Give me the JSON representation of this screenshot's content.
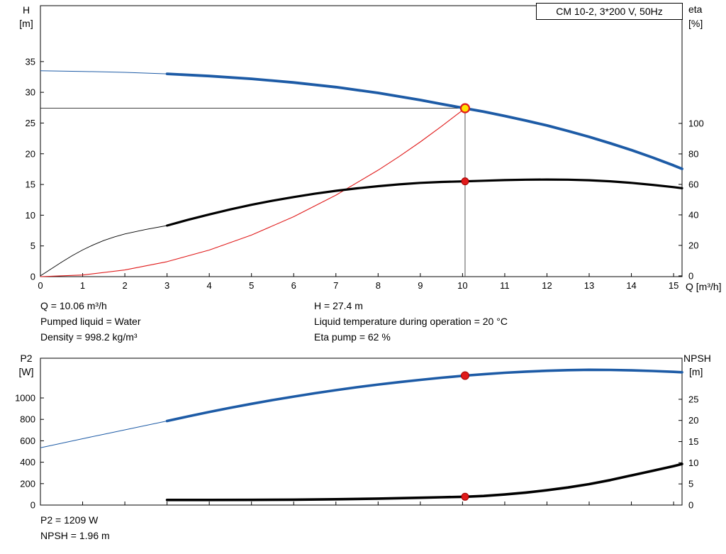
{
  "colors": {
    "blue": "#1d5ba6",
    "black": "#000000",
    "red": "#e01b1b",
    "dark_red": "#a00000",
    "yellow": "#ffe200",
    "gray": "#555555"
  },
  "annotations": {
    "top": {
      "col1": [
        "Q = 10.06 m³/h",
        "Pumped liquid = Water",
        "Density = 998.2 kg/m³"
      ],
      "col2": [
        "H = 27.4 m",
        "Liquid temperature during operation = 20 °C",
        "Eta pump = 62 %"
      ]
    },
    "bottom": [
      "P2 = 1209 W",
      "NPSH = 1.96 m"
    ]
  },
  "chart_data": [
    {
      "type": "line",
      "title": "CM 10-2, 3*200 V, 50Hz",
      "xlabel": "Q [m³/h]",
      "y_left_label_lines": [
        "H",
        "[m]"
      ],
      "y_right_label_lines": [
        "eta",
        "[%]"
      ],
      "x_range": [
        0,
        15.2
      ],
      "y_left_range": [
        0,
        44.1
      ],
      "y_right_range": [
        -0.5,
        177.2
      ],
      "x_ticks": [
        0,
        1,
        2,
        3,
        4,
        5,
        6,
        7,
        8,
        9,
        10,
        11,
        12,
        13,
        14,
        15
      ],
      "y_left_ticks": [
        0,
        5,
        10,
        15,
        20,
        25,
        30,
        35
      ],
      "y_right_ticks": [
        0,
        20,
        40,
        60,
        80,
        100
      ],
      "show_x_labels": true,
      "grid": false,
      "crosshair": {
        "h": {
          "value": 27.4,
          "from_x": 0,
          "to_x": 10.06
        },
        "v": {
          "x": 10.06,
          "from_value": 27.4
        }
      },
      "series": [
        {
          "name": "system-curve",
          "color": "red",
          "axis": "left",
          "width": 1.1,
          "thin_until": null,
          "points": [
            [
              0,
              0
            ],
            [
              1,
              0.27
            ],
            [
              2,
              1.08
            ],
            [
              3,
              2.44
            ],
            [
              4,
              4.33
            ],
            [
              5,
              6.77
            ],
            [
              6,
              9.75
            ],
            [
              7,
              13.27
            ],
            [
              8,
              17.33
            ],
            [
              8.5,
              19.56
            ],
            [
              9,
              21.94
            ],
            [
              9.5,
              24.45
            ],
            [
              10.06,
              27.4
            ]
          ]
        },
        {
          "name": "efficiency-curve",
          "color": "black",
          "axis": "right",
          "width": 3.2,
          "thin_until": 3,
          "thin_width": 0.9,
          "points": [
            [
              0,
              0
            ],
            [
              0.25,
              4.5
            ],
            [
              0.5,
              9
            ],
            [
              0.75,
              13.2
            ],
            [
              1,
              17
            ],
            [
              1.25,
              20.3
            ],
            [
              1.5,
              23.2
            ],
            [
              1.75,
              25.5
            ],
            [
              2,
              27.5
            ],
            [
              2.5,
              30.5
            ],
            [
              3,
              33
            ],
            [
              3.5,
              36.8
            ],
            [
              4,
              40.3
            ],
            [
              4.5,
              43.6
            ],
            [
              5,
              46.6
            ],
            [
              5.5,
              49.3
            ],
            [
              6,
              51.7
            ],
            [
              6.5,
              53.9
            ],
            [
              7,
              55.8
            ],
            [
              7.5,
              57.4
            ],
            [
              8,
              58.8
            ],
            [
              8.5,
              60
            ],
            [
              9,
              61
            ],
            [
              9.5,
              61.6
            ],
            [
              10.06,
              62
            ],
            [
              10.5,
              62.4
            ],
            [
              11,
              62.8
            ],
            [
              11.5,
              63.1
            ],
            [
              12,
              63.2
            ],
            [
              12.5,
              63.1
            ],
            [
              13,
              62.7
            ],
            [
              13.5,
              62
            ],
            [
              14,
              61
            ],
            [
              14.5,
              59.7
            ],
            [
              15,
              58.2
            ],
            [
              15.2,
              57.5
            ]
          ]
        },
        {
          "name": "head-curve",
          "color": "blue",
          "axis": "left",
          "width": 3.8,
          "thin_until": 3,
          "thin_width": 1,
          "points": [
            [
              0,
              33.5
            ],
            [
              1,
              33.4
            ],
            [
              2,
              33.25
            ],
            [
              3,
              33.0
            ],
            [
              4,
              32.65
            ],
            [
              5,
              32.2
            ],
            [
              6,
              31.6
            ],
            [
              7,
              30.85
            ],
            [
              8,
              29.9
            ],
            [
              9,
              28.75
            ],
            [
              9.5,
              28.1
            ],
            [
              10.06,
              27.4
            ],
            [
              10.5,
              26.85
            ],
            [
              11,
              26.15
            ],
            [
              11.5,
              25.4
            ],
            [
              12,
              24.6
            ],
            [
              12.5,
              23.7
            ],
            [
              13,
              22.75
            ],
            [
              13.5,
              21.7
            ],
            [
              14,
              20.6
            ],
            [
              14.5,
              19.4
            ],
            [
              15,
              18.1
            ],
            [
              15.2,
              17.55
            ]
          ]
        }
      ],
      "duty_points": [
        {
          "name": "duty-point-head",
          "x": 10.06,
          "value": 27.4,
          "axis": "left",
          "r": 6,
          "fill": "yellow",
          "stroke": "red",
          "stroke_width": 2.2
        },
        {
          "name": "duty-point-eta",
          "x": 10.06,
          "value": 62,
          "axis": "right",
          "r": 5,
          "fill": "red",
          "stroke": "dark_red",
          "stroke_width": 1
        }
      ]
    },
    {
      "type": "line",
      "title": "",
      "xlabel": "",
      "y_left_label_lines": [
        "P2",
        "[W]"
      ],
      "y_right_label_lines": [
        "NPSH",
        "[m]"
      ],
      "x_range": [
        0,
        15.2
      ],
      "y_left_range": [
        0,
        1371
      ],
      "y_right_range": [
        0,
        34.7
      ],
      "x_ticks": [
        0,
        1,
        2,
        3,
        4,
        5,
        6,
        7,
        8,
        9,
        10,
        11,
        12,
        13,
        14,
        15
      ],
      "y_left_ticks": [
        0,
        200,
        400,
        600,
        800,
        1000
      ],
      "y_right_ticks": [
        0,
        5,
        10,
        15,
        20,
        25
      ],
      "show_x_labels": false,
      "grid": false,
      "crosshair": null,
      "series": [
        {
          "name": "p2-curve",
          "color": "blue",
          "axis": "left",
          "width": 3.6,
          "thin_until": 3,
          "thin_width": 1,
          "points": [
            [
              0,
              535
            ],
            [
              0.5,
              577
            ],
            [
              1,
              619
            ],
            [
              1.5,
              661
            ],
            [
              2,
              702
            ],
            [
              2.5,
              744
            ],
            [
              3,
              785
            ],
            [
              3.5,
              828
            ],
            [
              4,
              869
            ],
            [
              4.5,
              908
            ],
            [
              5,
              945
            ],
            [
              5.5,
              980
            ],
            [
              6,
              1013
            ],
            [
              6.5,
              1044
            ],
            [
              7,
              1073
            ],
            [
              7.5,
              1100
            ],
            [
              8,
              1125
            ],
            [
              8.5,
              1148
            ],
            [
              9,
              1169
            ],
            [
              9.5,
              1189
            ],
            [
              10.06,
              1209
            ],
            [
              10.5,
              1221
            ],
            [
              11,
              1235
            ],
            [
              11.5,
              1246
            ],
            [
              12,
              1254
            ],
            [
              12.5,
              1260
            ],
            [
              13,
              1263
            ],
            [
              13.5,
              1262
            ],
            [
              14,
              1258
            ],
            [
              14.5,
              1252
            ],
            [
              15,
              1244
            ],
            [
              15.2,
              1240
            ]
          ]
        },
        {
          "name": "npsh-curve",
          "color": "black",
          "axis": "right",
          "width": 3.6,
          "thin_until": null,
          "points": [
            [
              3,
              1.2
            ],
            [
              4,
              1.2
            ],
            [
              5,
              1.22
            ],
            [
              6,
              1.28
            ],
            [
              7,
              1.38
            ],
            [
              8,
              1.52
            ],
            [
              8.5,
              1.62
            ],
            [
              9,
              1.73
            ],
            [
              9.5,
              1.84
            ],
            [
              10.06,
              1.96
            ],
            [
              10.5,
              2.15
            ],
            [
              11,
              2.5
            ],
            [
              11.5,
              2.95
            ],
            [
              12,
              3.5
            ],
            [
              12.5,
              4.15
            ],
            [
              13,
              4.95
            ],
            [
              13.5,
              5.9
            ],
            [
              14,
              7.0
            ],
            [
              14.5,
              8.1
            ],
            [
              15,
              9.2
            ],
            [
              15.2,
              9.7
            ]
          ]
        }
      ],
      "duty_points": [
        {
          "name": "duty-point-p2",
          "x": 10.06,
          "value": 1209,
          "axis": "left",
          "r": 5.5,
          "fill": "red",
          "stroke": "dark_red",
          "stroke_width": 1
        },
        {
          "name": "duty-point-npsh",
          "x": 10.06,
          "value": 1.96,
          "axis": "right",
          "r": 5,
          "fill": "red",
          "stroke": "dark_red",
          "stroke_width": 1
        }
      ]
    }
  ]
}
